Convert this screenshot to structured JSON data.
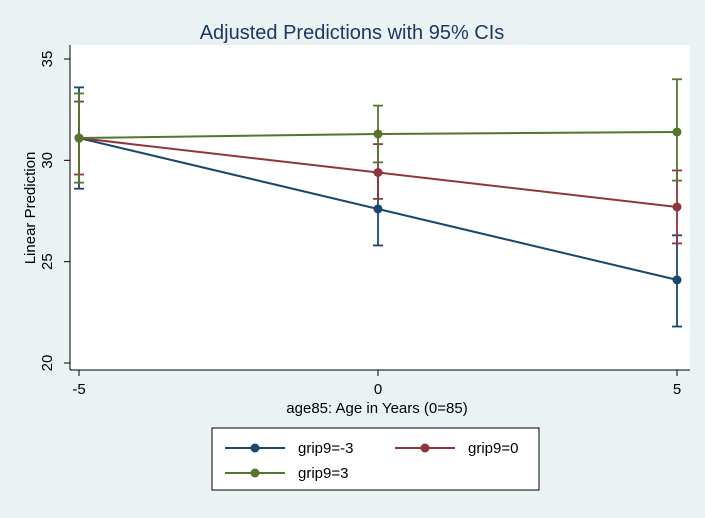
{
  "chart_data": {
    "type": "line",
    "title": "Adjusted Predictions with 95% CIs",
    "xlabel": "age85: Age in Years (0=85)",
    "ylabel": "Linear Prediction",
    "x": [
      -5,
      0,
      5
    ],
    "xticks": [
      "-5",
      "0",
      "5"
    ],
    "yticks": [
      "20",
      "25",
      "30",
      "35"
    ],
    "xlim": [
      -5,
      5
    ],
    "ylim": [
      20,
      35
    ],
    "grid": false,
    "legend_position": "bottom",
    "series": [
      {
        "name": "grip9=-3",
        "color": "#1a476f",
        "values": [
          31.1,
          27.6,
          24.1
        ],
        "ci_low": [
          28.6,
          25.8,
          21.8
        ],
        "ci_high": [
          33.6,
          29.4,
          26.3
        ]
      },
      {
        "name": "grip9=0",
        "color": "#90353b",
        "values": [
          31.1,
          29.4,
          27.7
        ],
        "ci_low": [
          29.3,
          28.1,
          25.9
        ],
        "ci_high": [
          32.9,
          30.8,
          29.5
        ]
      },
      {
        "name": "grip9=3",
        "color": "#55752f",
        "values": [
          31.1,
          31.3,
          31.4
        ],
        "ci_low": [
          28.9,
          29.9,
          29.0
        ],
        "ci_high": [
          33.3,
          32.7,
          34.0
        ]
      }
    ]
  }
}
